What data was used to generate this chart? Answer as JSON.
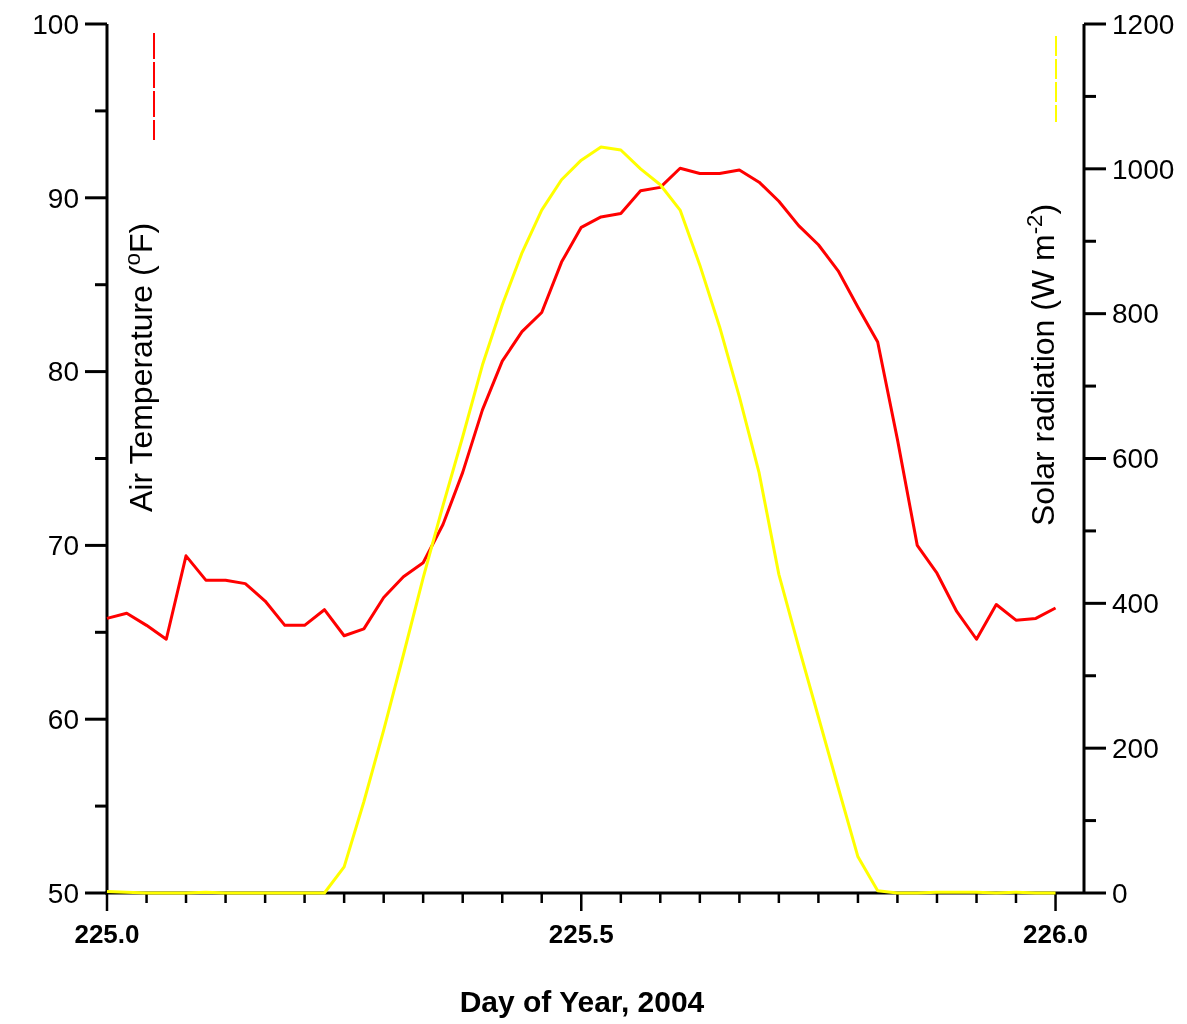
{
  "chart_data": {
    "type": "line",
    "xlabel": "Day of Year, 2004",
    "ylabel": "Air Temperature ($^{o}$F)",
    "y2label": "Solar radiation (W m$^{-2}$)",
    "x": [
      225,
      225.0208,
      225.0417,
      225.0625,
      225.0833,
      225.1042,
      225.125,
      225.1458,
      225.1667,
      225.1875,
      225.2083,
      225.2292,
      225.25,
      225.2708,
      225.2917,
      225.3125,
      225.3333,
      225.3542,
      225.375,
      225.3958,
      225.4167,
      225.4375,
      225.4583,
      225.4792,
      225.5,
      225.5208,
      225.5417,
      225.5625,
      225.5833,
      225.6042,
      225.625,
      225.6458,
      225.6667,
      225.6875,
      225.7083,
      225.7292,
      225.75,
      225.7708,
      225.7917,
      225.8125,
      225.8333,
      225.8542,
      225.875,
      225.8958,
      225.9167,
      225.9375,
      225.9583,
      225.9792,
      226
    ],
    "series": [
      {
        "color": "#ff0000",
        "values": [
          65.8,
          66.1,
          65.4,
          64.6,
          69.4,
          68.0,
          68.0,
          67.8,
          66.8,
          65.4,
          65.4,
          66.3,
          64.8,
          65.2,
          67.0,
          68.2,
          69.0,
          71.2,
          74.2,
          77.8,
          80.6,
          82.3,
          83.4,
          86.3,
          88.3,
          88.9,
          89.1,
          90.4,
          90.6,
          91.7,
          91.4,
          91.4,
          91.6,
          90.9,
          89.8,
          88.4,
          87.3,
          85.8,
          83.7,
          81.7,
          76.1,
          70.0,
          68.4,
          66.2,
          64.6,
          66.6,
          65.7,
          65.8,
          66.4
        ]
      },
      {
        "color": "#ffff00",
        "axis": "y2",
        "values": [
          2,
          1,
          0,
          0,
          0,
          1,
          0,
          0,
          0,
          0,
          0,
          0,
          36,
          126,
          225,
          329,
          435,
          535,
          630,
          729,
          812,
          884,
          943,
          985,
          1012,
          1030,
          1026,
          1000,
          978,
          943,
          867,
          782,
          685,
          580,
          440,
          340,
          243,
          146,
          50,
          3,
          0,
          0,
          1,
          1,
          1,
          0,
          1,
          0,
          0
        ]
      }
    ],
    "xlim": [
      225,
      226.03
    ],
    "xticks": [
      {
        "value": 225,
        "label": "225.0"
      },
      {
        "value": 225.0417,
        "label": null
      },
      {
        "value": 225.0833,
        "label": null
      },
      {
        "value": 225.125,
        "label": null
      },
      {
        "value": 225.1667,
        "label": null
      },
      {
        "value": 225.2083,
        "label": null
      },
      {
        "value": 225.25,
        "label": null
      },
      {
        "value": 225.2917,
        "label": null
      },
      {
        "value": 225.3333,
        "label": null
      },
      {
        "value": 225.375,
        "label": null
      },
      {
        "value": 225.4167,
        "label": null
      },
      {
        "value": 225.4583,
        "label": null
      },
      {
        "value": 225.5,
        "label": "225.5"
      },
      {
        "value": 225.5417,
        "label": null
      },
      {
        "value": 225.5833,
        "label": null
      },
      {
        "value": 225.625,
        "label": null
      },
      {
        "value": 225.6667,
        "label": null
      },
      {
        "value": 225.7083,
        "label": null
      },
      {
        "value": 225.75,
        "label": null
      },
      {
        "value": 225.7917,
        "label": null
      },
      {
        "value": 225.8333,
        "label": null
      },
      {
        "value": 225.875,
        "label": null
      },
      {
        "value": 225.9167,
        "label": null
      },
      {
        "value": 225.9583,
        "label": null
      },
      {
        "value": 226,
        "label": "226.0"
      }
    ],
    "ylim": [
      50,
      100
    ],
    "yticks": [
      50,
      {
        "value": 55,
        "label": null
      },
      60,
      {
        "value": 65,
        "label": null
      },
      70,
      {
        "value": 75,
        "label": null
      },
      80,
      {
        "value": 85,
        "label": null
      },
      90,
      {
        "value": 95,
        "label": null
      },
      100
    ],
    "y2lim": [
      0,
      1200
    ],
    "y2ticks": [
      0,
      {
        "value": 100,
        "label": null
      },
      200,
      {
        "value": 300,
        "label": null
      },
      400,
      {
        "value": 500,
        "label": null
      },
      600,
      {
        "value": 700,
        "label": null
      },
      800,
      {
        "value": 900,
        "label": null
      },
      1000,
      {
        "value": 1100,
        "label": null
      },
      1200
    ],
    "line_style": "solid",
    "marker": "none",
    "grid": false
  }
}
